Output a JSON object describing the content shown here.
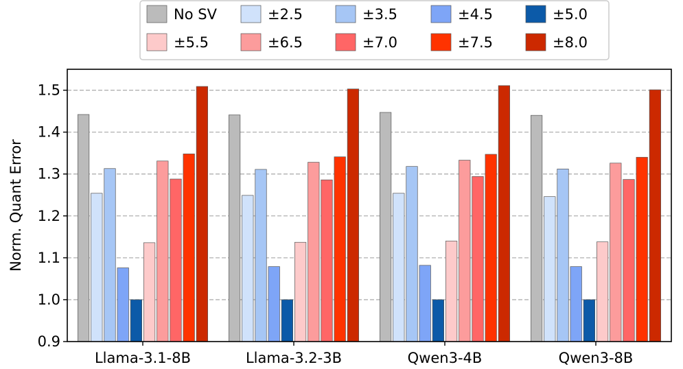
{
  "chart_data": {
    "type": "bar",
    "title": "",
    "xlabel": "",
    "ylabel": "Norm. Quant Error",
    "ylim": [
      0.9,
      1.55
    ],
    "yticks": [
      "0.9",
      "1.0",
      "1.1",
      "1.2",
      "1.3",
      "1.4",
      "1.5"
    ],
    "grid": "horizontal dashed",
    "legend_position": "top-center",
    "categories": [
      "Llama-3.1-8B",
      "Llama-3.2-3B",
      "Qwen3-4B",
      "Qwen3-8B"
    ],
    "series": [
      {
        "name": "No SV",
        "color": "#bbbbbb",
        "values": [
          1.442,
          1.441,
          1.447,
          1.44
        ]
      },
      {
        "name": "±2.5",
        "color": "#d0e2fb",
        "values": [
          1.254,
          1.249,
          1.254,
          1.246
        ]
      },
      {
        "name": "±3.5",
        "color": "#a6c6f5",
        "values": [
          1.313,
          1.311,
          1.318,
          1.312
        ]
      },
      {
        "name": "±4.5",
        "color": "#7ea5f7",
        "values": [
          1.076,
          1.079,
          1.082,
          1.079
        ]
      },
      {
        "name": "±5.0",
        "color": "#0c5aa8",
        "values": [
          1.0,
          1.0,
          1.0,
          1.0
        ]
      },
      {
        "name": "±5.5",
        "color": "#fdcaca",
        "values": [
          1.136,
          1.137,
          1.14,
          1.138
        ]
      },
      {
        "name": "±6.5",
        "color": "#fc9c9c",
        "values": [
          1.331,
          1.328,
          1.333,
          1.326
        ]
      },
      {
        "name": "±7.0",
        "color": "#ff6666",
        "values": [
          1.288,
          1.286,
          1.294,
          1.287
        ]
      },
      {
        "name": "±7.5",
        "color": "#ff3300",
        "values": [
          1.348,
          1.341,
          1.347,
          1.34
        ]
      },
      {
        "name": "±8.0",
        "color": "#cc2900",
        "values": [
          1.509,
          1.503,
          1.511,
          1.501
        ]
      }
    ]
  }
}
